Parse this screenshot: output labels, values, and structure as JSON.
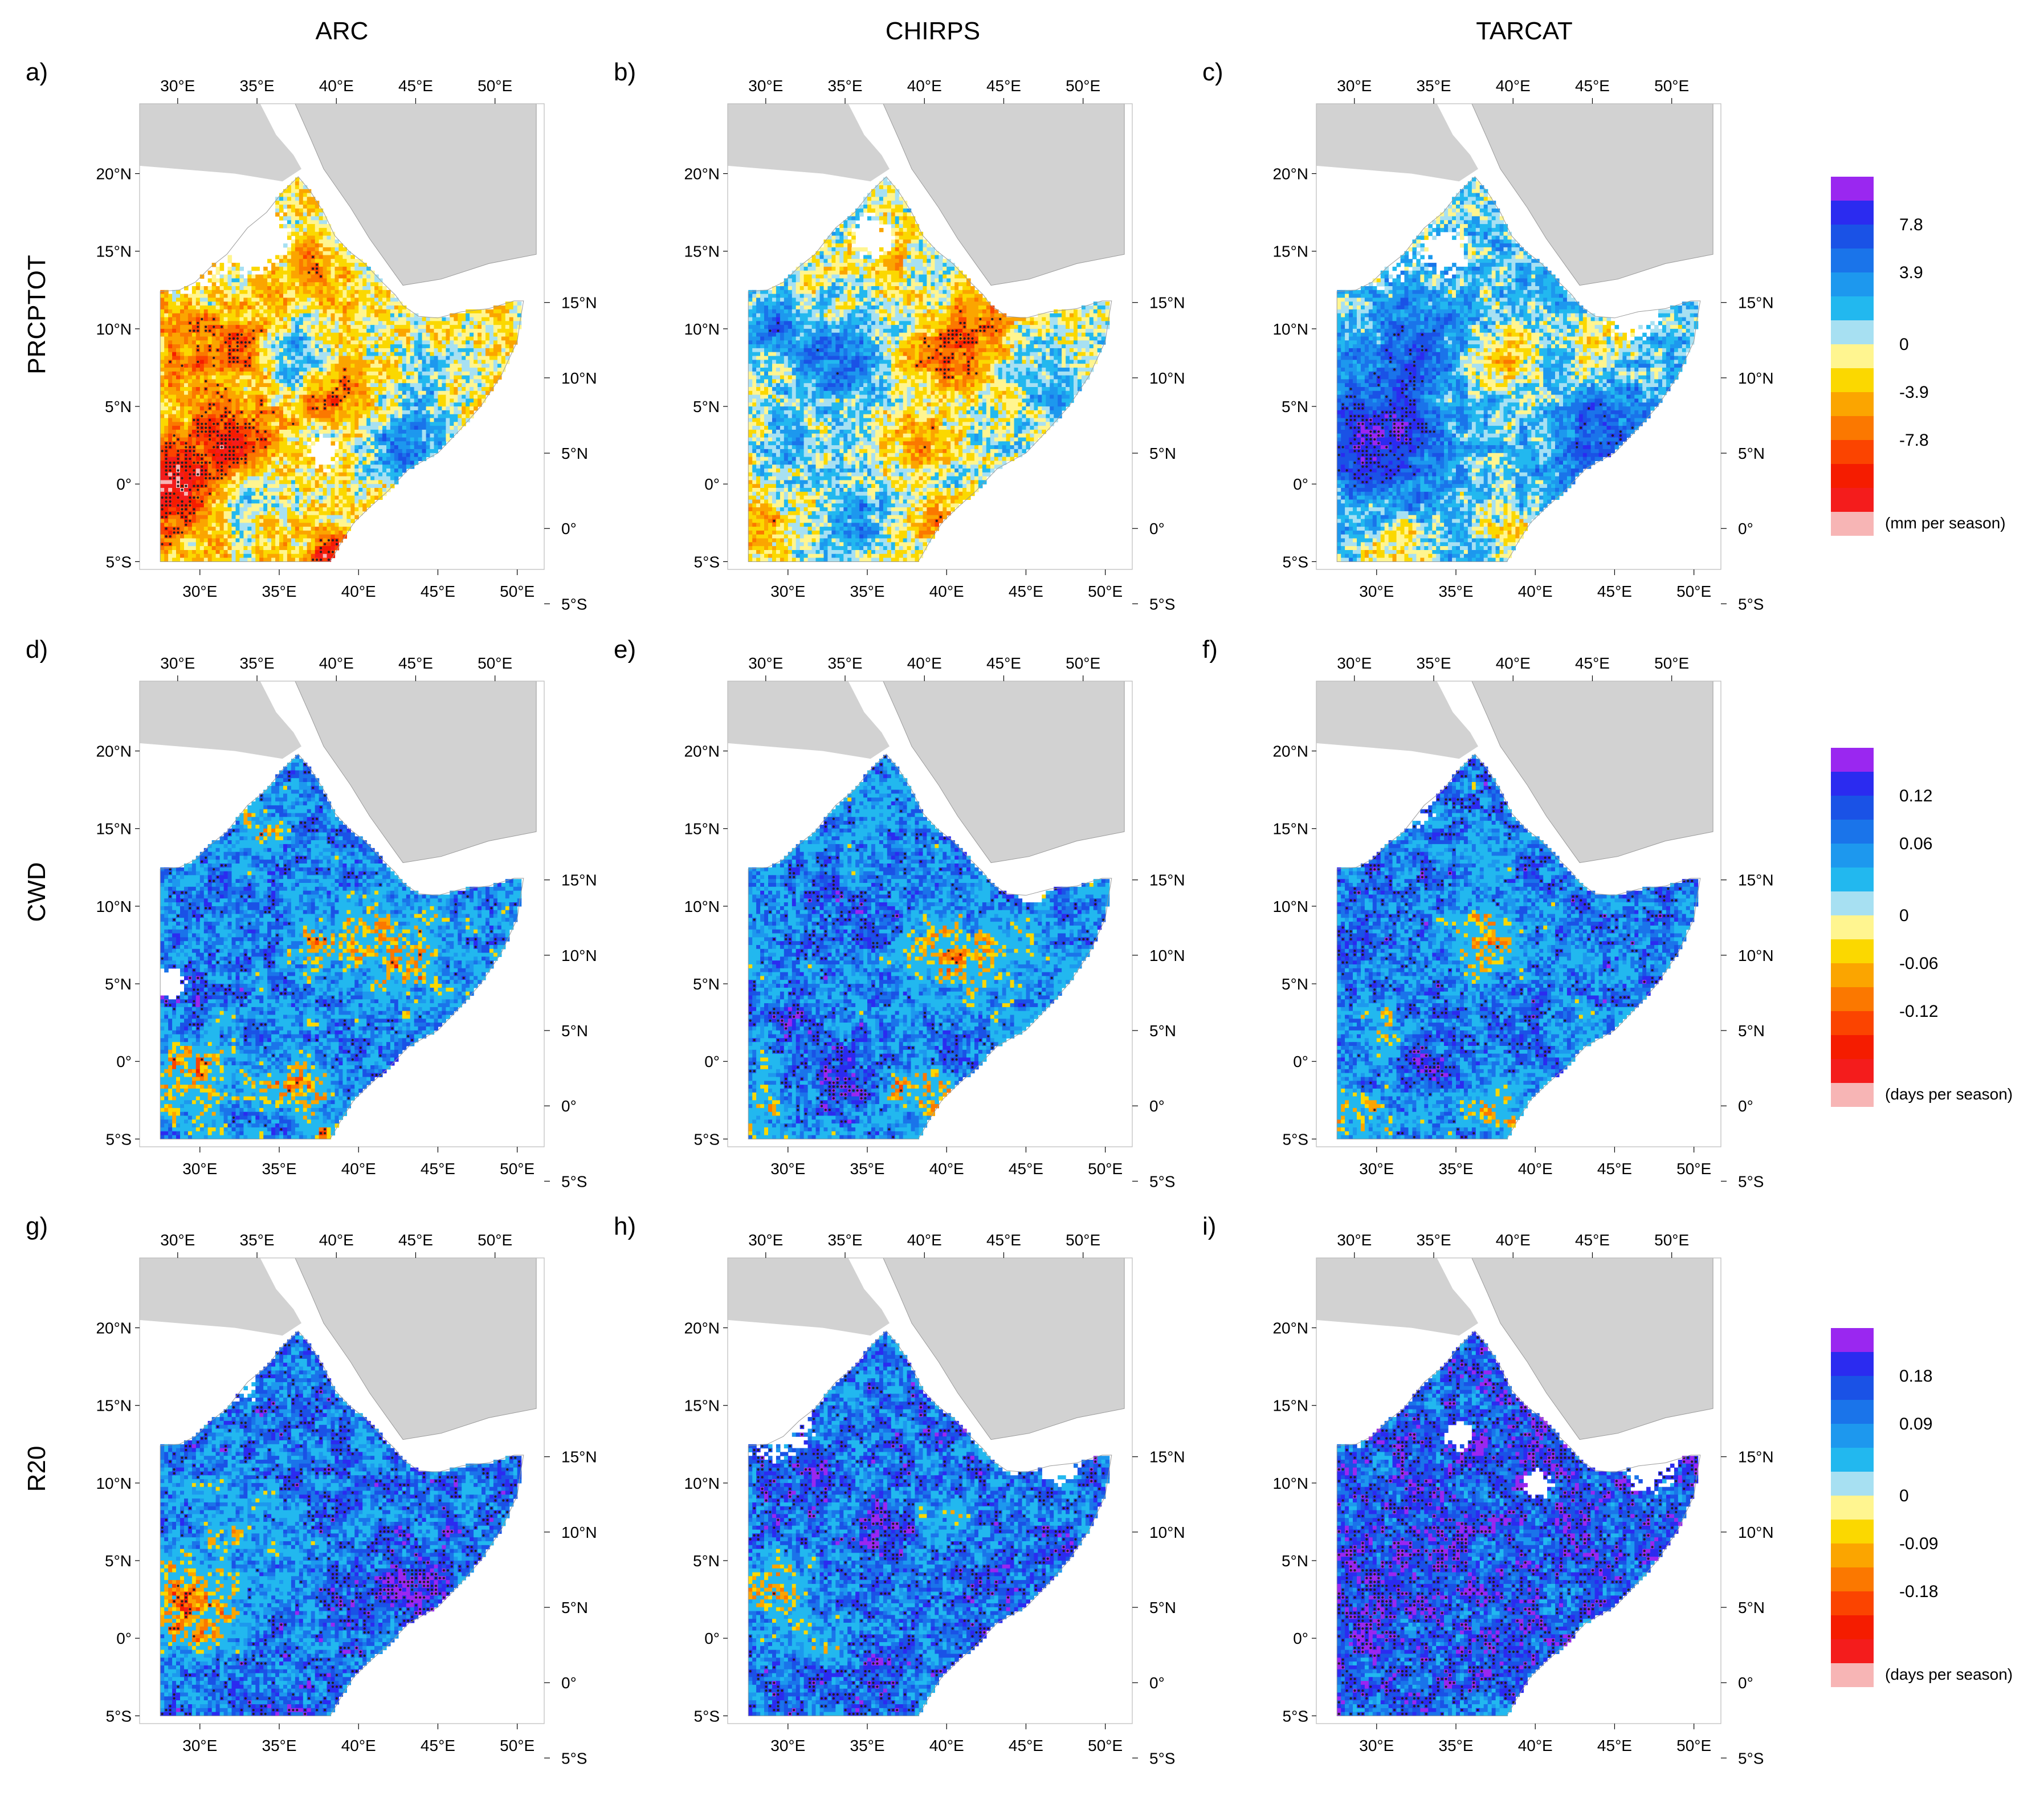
{
  "figure": {
    "columns": [
      "ARC",
      "CHIRPS",
      "TARCAT"
    ],
    "rows": [
      {
        "name": "PRCPTOT",
        "colorbar": {
          "ticks": [
            "7.8",
            "3.9",
            "0",
            "-3.9",
            "-7.8"
          ],
          "unit": "(mm per season)",
          "colors": [
            "#9a27f0",
            "#2b2bf0",
            "#1a52e6",
            "#1a74ea",
            "#1d98ee",
            "#22b8ef",
            "#a7e0f2",
            "#fff590",
            "#fbd800",
            "#fba500",
            "#fb7800",
            "#fb4400",
            "#f51c00",
            "#f41c1c",
            "#f7b5b5"
          ]
        },
        "panels": [
          {
            "label": "a)",
            "pattern": "arc_prcptot"
          },
          {
            "label": "b)",
            "pattern": "chirps_prcptot"
          },
          {
            "label": "c)",
            "pattern": "tarcat_prcptot"
          }
        ]
      },
      {
        "name": "CWD",
        "colorbar": {
          "ticks": [
            "0.12",
            "0.06",
            "0",
            "-0.06",
            "-0.12"
          ],
          "unit": "(days per season)",
          "colors": [
            "#9a27f0",
            "#2b2bf0",
            "#1a52e6",
            "#1a74ea",
            "#1d98ee",
            "#22b8ef",
            "#a7e0f2",
            "#fff590",
            "#fbd800",
            "#fba500",
            "#fb7800",
            "#fb4400",
            "#f51c00",
            "#f41c1c",
            "#f7b5b5"
          ]
        },
        "panels": [
          {
            "label": "d)",
            "pattern": "arc_cwd"
          },
          {
            "label": "e)",
            "pattern": "chirps_cwd"
          },
          {
            "label": "f)",
            "pattern": "tarcat_cwd"
          }
        ]
      },
      {
        "name": "R20",
        "colorbar": {
          "ticks": [
            "0.18",
            "0.09",
            "0",
            "-0.09",
            "-0.18"
          ],
          "unit": "(days per season)",
          "colors": [
            "#9a27f0",
            "#2b2bf0",
            "#1a52e6",
            "#1a74ea",
            "#1d98ee",
            "#22b8ef",
            "#a7e0f2",
            "#fff590",
            "#fbd800",
            "#fba500",
            "#fb7800",
            "#fb4400",
            "#f51c00",
            "#f41c1c",
            "#f7b5b5"
          ]
        },
        "panels": [
          {
            "label": "g)",
            "pattern": "arc_r20"
          },
          {
            "label": "h)",
            "pattern": "chirps_r20"
          },
          {
            "label": "i)",
            "pattern": "tarcat_r20"
          }
        ]
      }
    ],
    "axes": {
      "lon_ticks": [
        "30°E",
        "35°E",
        "40°E",
        "45°E",
        "50°E"
      ],
      "lat_ticks_left": [
        "20°N",
        "15°N",
        "10°N",
        "5°N",
        "0°",
        "5°S"
      ],
      "lat_ticks_right": [
        "15°N",
        "10°N",
        "5°N",
        "0°",
        "5°S"
      ]
    },
    "colors": {
      "land_gray": "#d2d2d2",
      "no_data": "#ffffff",
      "coast": "#9a9a9a",
      "stipple": "#222222"
    }
  }
}
